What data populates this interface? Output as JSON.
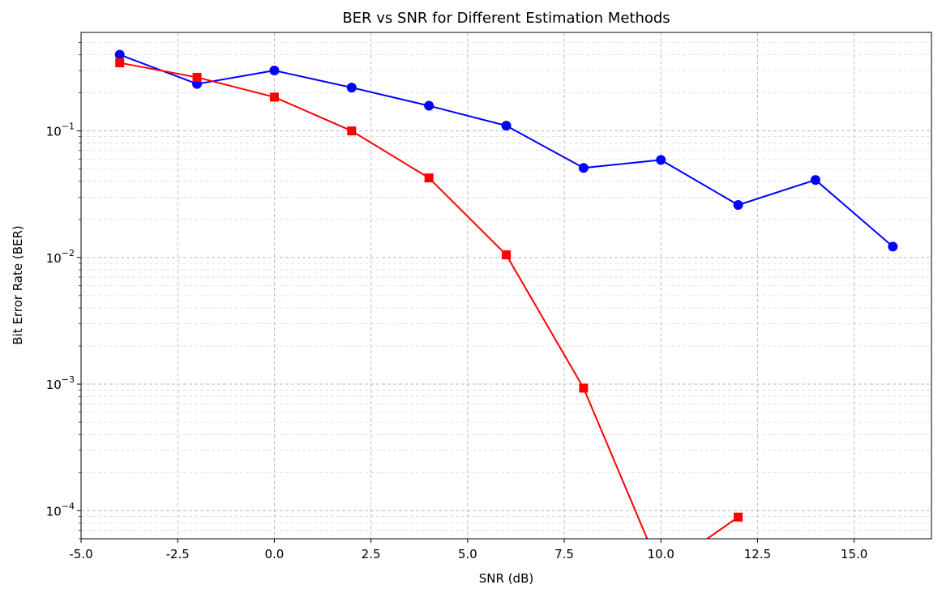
{
  "chart_data": {
    "type": "line",
    "title": "BER vs SNR for Different Estimation Methods",
    "xlabel": "SNR (dB)",
    "ylabel": "Bit Error Rate (BER)",
    "xlim": [
      -5.0,
      17.0
    ],
    "ylim": [
      6e-05,
      0.6
    ],
    "yscale": "log",
    "grid": true,
    "x_ticks": [
      "-5.0",
      "-2.5",
      "0.0",
      "2.5",
      "5.0",
      "7.5",
      "10.0",
      "12.5",
      "15.0"
    ],
    "y_ticks": [
      {
        "base": "10",
        "exp": "−1"
      },
      {
        "base": "10",
        "exp": "−2"
      },
      {
        "base": "10",
        "exp": "−3"
      },
      {
        "base": "10",
        "exp": "−4"
      }
    ],
    "x": [
      -4,
      -2,
      0,
      2,
      4,
      6,
      8,
      10,
      12,
      14,
      16
    ],
    "series": [
      {
        "color": "#0000ff",
        "marker": "circle",
        "values": [
          0.4,
          0.235,
          0.3,
          0.22,
          0.158,
          0.11,
          0.051,
          0.059,
          0.026,
          0.041,
          0.0122
        ]
      },
      {
        "color": "#ff0000",
        "marker": "square",
        "values": [
          0.345,
          0.265,
          0.185,
          0.1,
          0.0425,
          0.0105,
          0.00093,
          0,
          8.9e-05,
          null,
          null
        ]
      }
    ]
  }
}
